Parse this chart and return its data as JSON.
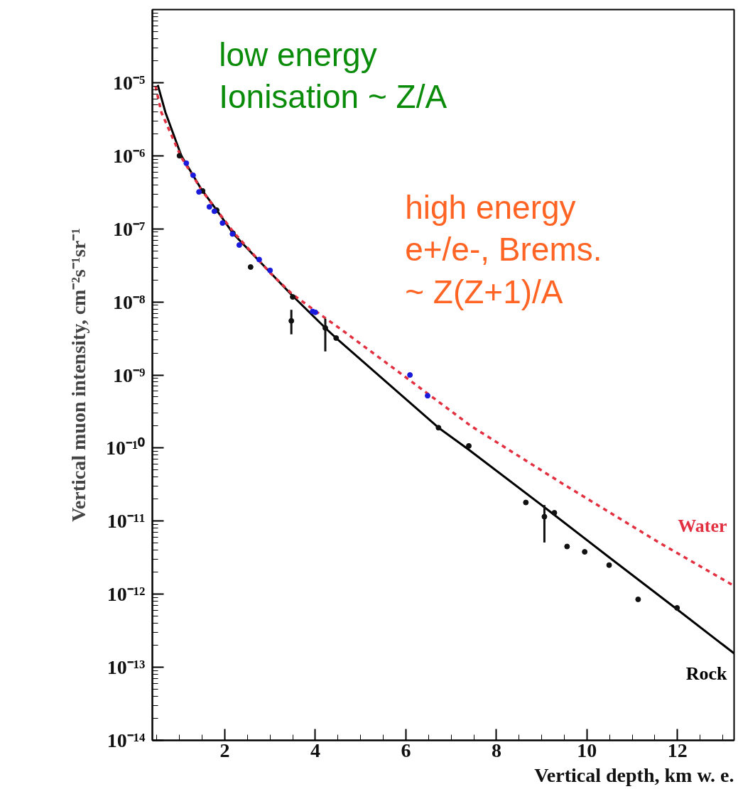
{
  "chart_data": {
    "type": "line",
    "xlabel": "Vertical depth, km w. e.",
    "ylabel": "Vertical muon intensity, cm⁻²s⁻¹sr⁻¹",
    "log": "y",
    "grid": false,
    "xlim": [
      0.4,
      13.25
    ],
    "ylim": [
      1e-14,
      0.0001
    ],
    "xticks": [
      2,
      4,
      6,
      8,
      10,
      12
    ],
    "yticks": [
      {
        "value": 1e-05,
        "label": "10⁻⁵"
      },
      {
        "value": 1e-06,
        "label": "10⁻⁶"
      },
      {
        "value": 1e-07,
        "label": "10⁻⁷"
      },
      {
        "value": 1e-08,
        "label": "10⁻⁸"
      },
      {
        "value": 1e-09,
        "label": "10⁻⁹"
      },
      {
        "value": 1e-10,
        "label": "10⁻¹⁰"
      },
      {
        "value": 1e-11,
        "label": "10⁻¹¹"
      },
      {
        "value": 1e-12,
        "label": "10⁻¹²"
      },
      {
        "value": 1e-13,
        "label": "10⁻¹³"
      },
      {
        "value": 1e-14,
        "label": "10⁻¹⁴"
      }
    ],
    "series": [
      {
        "name": "Rock",
        "color": "#000000",
        "line_style": "solid",
        "x": [
          0.52,
          0.69,
          1.04,
          1.48,
          1.82,
          2.18,
          2.73,
          3.47,
          4.22,
          4.46,
          5.5,
          6.72,
          7.39,
          9.12,
          10.49,
          11.99,
          13.25
        ],
        "values": [
          9.3e-06,
          3.9e-06,
          1e-06,
          3.5e-07,
          1.8e-07,
          8.7e-08,
          3.8e-08,
          1.26e-08,
          4.4e-09,
          3.2e-09,
          8.7e-10,
          1.9e-10,
          9.5e-11,
          1.45e-11,
          3.2e-12,
          6.2e-13,
          1.55e-13
        ]
      },
      {
        "name": "Water",
        "color": "#e23040",
        "line_style": "dashed",
        "x": [
          0.47,
          0.6,
          1.04,
          1.5,
          2.2,
          3.0,
          3.5,
          4.57,
          5.93,
          7.44,
          9.48,
          11.59,
          13.25
        ],
        "values": [
          8.9e-06,
          3.9e-06,
          9.5e-07,
          3.3e-07,
          8.9e-08,
          2.5e-08,
          1.26e-08,
          4.2e-09,
          1e-09,
          2e-10,
          3.2e-11,
          5.1e-12,
          1.3e-12
        ]
      },
      {
        "type": "scatter",
        "color": "#111111",
        "marker": "circle",
        "x": [
          1.0,
          1.51,
          1.82,
          2.18,
          2.57,
          3.5,
          3.47,
          4.22,
          4.46,
          6.72,
          7.39,
          8.65,
          9.06,
          9.28,
          9.56,
          9.95,
          10.49,
          11.13,
          11.99
        ],
        "values": [
          1e-06,
          3.3e-07,
          1.8e-07,
          8.7e-08,
          3e-08,
          1.17e-08,
          5.5e-09,
          4.4e-09,
          3.2e-09,
          1.9e-10,
          1.07e-10,
          1.8e-11,
          1.15e-11,
          1.3e-11,
          4.5e-12,
          3.8e-12,
          2.5e-12,
          8.5e-13,
          6.5e-13
        ],
        "errors": [
          null,
          null,
          null,
          null,
          null,
          null,
          [
            3.6e-09,
            7.8e-09
          ],
          [
            2.1e-09,
            5.9e-09
          ],
          null,
          null,
          null,
          null,
          [
            5.1e-12,
            1.66e-11
          ],
          null,
          null,
          null,
          null,
          null,
          null
        ]
      },
      {
        "type": "scatter",
        "color": "#1a1adc",
        "marker": "circle",
        "x": [
          1.15,
          1.3,
          1.43,
          1.66,
          1.77,
          1.95,
          2.32,
          3.0,
          3.94,
          6.09
        ],
        "values": [
          7.9e-07,
          5.4e-07,
          3.2e-07,
          2e-07,
          1.74e-07,
          1.2e-07,
          6e-08,
          2.7e-08,
          7.4e-09,
          1e-09
        ]
      },
      {
        "type": "scatter",
        "color": "#1a1adc",
        "marker": "circle",
        "x": [
          2.17,
          2.76,
          4.0,
          6.48
        ],
        "values": [
          8.5e-08,
          3.8e-08,
          7.2e-09,
          5.2e-10
        ]
      }
    ],
    "annotations": [
      "low energy\nIonisation ~ Z/A",
      "high energy\n e+/e-, Brems.\n ~ Z(Z+1)/A"
    ]
  }
}
